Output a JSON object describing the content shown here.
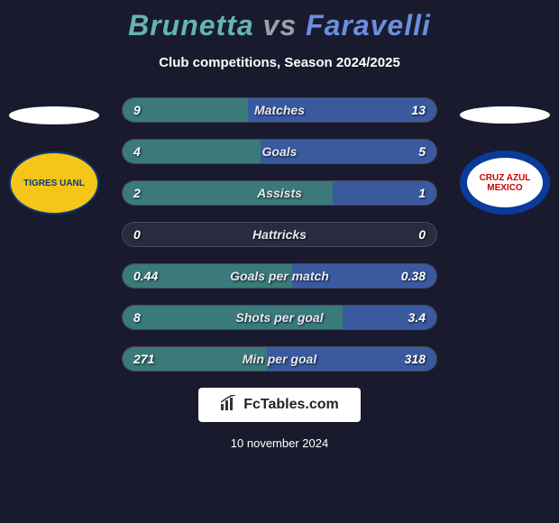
{
  "title": {
    "player1": "Brunetta",
    "vs": "vs",
    "player2": "Faravelli",
    "player1_color": "#64b4b4",
    "vs_color": "#9aa0a8",
    "player2_color": "#6a8fe0"
  },
  "subtitle": "Club competitions, Season 2024/2025",
  "clubs": {
    "left": {
      "name": "TIGRES UANL",
      "crest_bg": "#f5c518",
      "crest_border": "#0a3a7a",
      "crest_text_color": "#0a3a7a"
    },
    "right": {
      "name": "CRUZ AZUL MEXICO",
      "crest_bg": "#ffffff",
      "crest_border": "#0a3a9a",
      "crest_text_color": "#c00000"
    }
  },
  "bars": {
    "bar_bg": "#2a2a40",
    "fill_left_color": "#3a7a7a",
    "fill_right_color": "#3a5aa0",
    "rows": [
      {
        "label": "Matches",
        "left_val": "9",
        "right_val": "13",
        "left_pct": 40,
        "right_pct": 60
      },
      {
        "label": "Goals",
        "left_val": "4",
        "right_val": "5",
        "left_pct": 44,
        "right_pct": 56
      },
      {
        "label": "Assists",
        "left_val": "2",
        "right_val": "1",
        "left_pct": 67,
        "right_pct": 33
      },
      {
        "label": "Hattricks",
        "left_val": "0",
        "right_val": "0",
        "left_pct": 0,
        "right_pct": 0
      },
      {
        "label": "Goals per match",
        "left_val": "0.44",
        "right_val": "0.38",
        "left_pct": 54,
        "right_pct": 46
      },
      {
        "label": "Shots per goal",
        "left_val": "8",
        "right_val": "3.4",
        "left_pct": 70,
        "right_pct": 30
      },
      {
        "label": "Min per goal",
        "left_val": "271",
        "right_val": "318",
        "left_pct": 46,
        "right_pct": 54
      }
    ]
  },
  "brand": {
    "text": "FcTables.com"
  },
  "date": "10 november 2024",
  "background_color": "#1a1a2e"
}
